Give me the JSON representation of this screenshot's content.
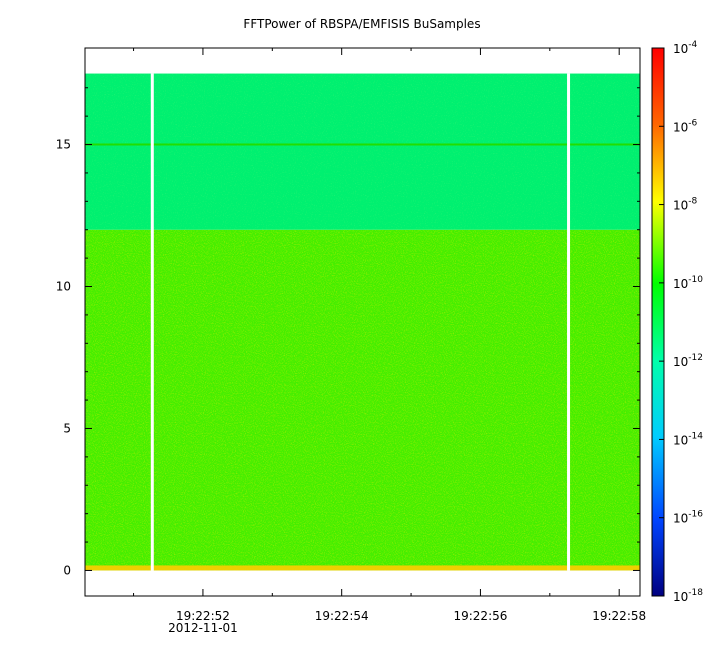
{
  "chart_data": {
    "type": "heatmap",
    "title": "FFTPower of RBSPA/EMFISIS  BuSamples",
    "xlabel": "",
    "ylabel": "",
    "x_tick_labels": [
      "19:22:52",
      "19:22:54",
      "19:22:56",
      "19:22:58"
    ],
    "x_tick_values_s": [
      52,
      54,
      56,
      58
    ],
    "x_date_label": "2012-11-01",
    "xlim_s": [
      50.3,
      58.3
    ],
    "y_ticks": [
      0,
      5,
      10,
      15
    ],
    "ylim": [
      -0.9,
      18.4
    ],
    "data_y_range": [
      0,
      17.5
    ],
    "gaps_s": [
      51.27,
      57.27
    ],
    "horizontal_line_y": 15,
    "color_scale": "log",
    "colorbar": {
      "range": [
        "1e-18",
        "1e-4"
      ],
      "tick_base": "10",
      "tick_exponents": [
        "-4",
        "-6",
        "-8",
        "-10",
        "-12",
        "-14",
        "-16",
        "-18"
      ],
      "colors_top_to_bottom": [
        "#ff0000",
        "#ffaa00",
        "#ffff00",
        "#00ff00",
        "#00ffaa",
        "#00ccff",
        "#0044ff",
        "#000080"
      ]
    },
    "band_colors": {
      "upper_band_above_12": "#00f070",
      "main_band": "#44ee00",
      "bottom_edge": "#ffcc00"
    }
  }
}
